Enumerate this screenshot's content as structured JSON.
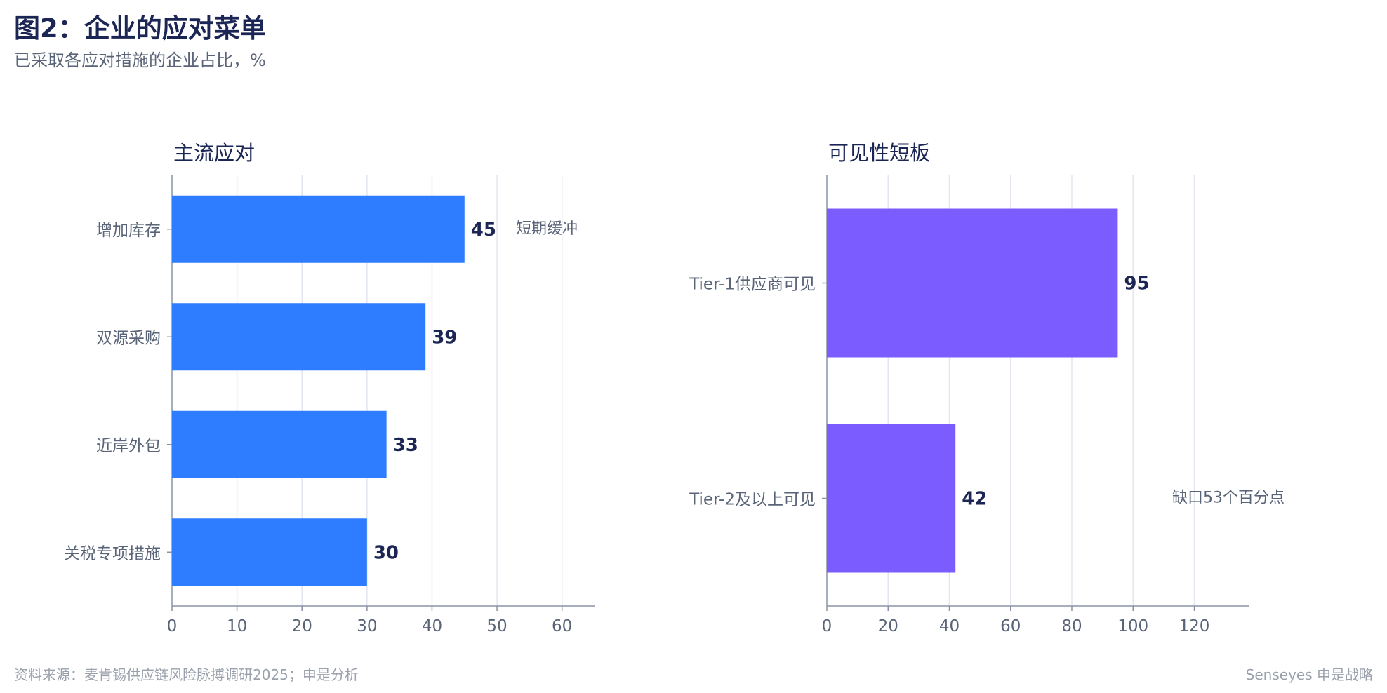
{
  "header": {
    "title": "图2：企业的应对菜单",
    "subtitle": "已采取各应对措施的企业占比，%"
  },
  "footer": {
    "source": "资料来源：麦肯锡供应链风险脉搏调研2025；申是分析",
    "brand": "Senseyes 申是战略"
  },
  "colors": {
    "left_bar": "#2e7cff",
    "right_bar": "#7b5cff",
    "value_label": "#1b2654",
    "grid": "#e2e6ee",
    "axis": "#8a93a5",
    "tick_text": "#5a6478",
    "annotation": "#5a6478"
  },
  "chart_data": [
    {
      "type": "bar",
      "orientation": "horizontal",
      "title": "主流应对",
      "categories": [
        "增加库存",
        "双源采购",
        "近岸外包",
        "关税专项措施"
      ],
      "values": [
        45,
        39,
        33,
        30
      ],
      "xlim": [
        0,
        65
      ],
      "xticks": [
        0,
        10,
        20,
        30,
        40,
        50,
        60
      ],
      "grid": true,
      "annotations": [
        {
          "category": "增加库存",
          "text": "短期缓冲"
        }
      ]
    },
    {
      "type": "bar",
      "orientation": "horizontal",
      "title": "可见性短板",
      "categories": [
        "Tier-1供应商可见",
        "Tier-2及以上可见"
      ],
      "values": [
        95,
        42
      ],
      "xlim": [
        0,
        138
      ],
      "xticks": [
        0,
        20,
        40,
        60,
        80,
        100,
        120
      ],
      "grid": true,
      "annotations": [
        {
          "category": "Tier-2及以上可见",
          "text": "缺口53个百分点"
        }
      ]
    }
  ]
}
